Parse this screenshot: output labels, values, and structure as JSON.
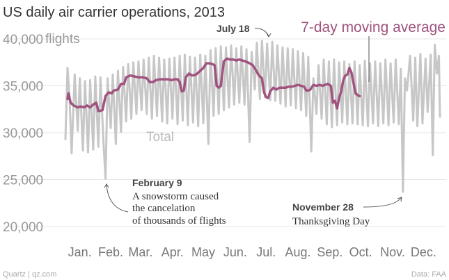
{
  "chart_data": {
    "type": "line",
    "title": "US daily air carrier operations, 2013",
    "ylabel_unit": "flights",
    "ylim": [
      18500,
      42000
    ],
    "yticks": [
      {
        "value": 40000,
        "label": "40,000"
      },
      {
        "value": 35000,
        "label": "35,000"
      },
      {
        "value": 30000,
        "label": "30,000"
      },
      {
        "value": 25000,
        "label": "25,000"
      },
      {
        "value": 20000,
        "label": "20,000"
      }
    ],
    "xticks": [
      {
        "day": 15,
        "label": "Jan."
      },
      {
        "day": 45,
        "label": "Feb."
      },
      {
        "day": 74,
        "label": "Mar."
      },
      {
        "day": 105,
        "label": "Apr."
      },
      {
        "day": 135,
        "label": "May"
      },
      {
        "day": 166,
        "label": "Jun."
      },
      {
        "day": 196,
        "label": "Jul."
      },
      {
        "day": 227,
        "label": "Aug."
      },
      {
        "day": 258,
        "label": "Sep."
      },
      {
        "day": 288,
        "label": "Oct."
      },
      {
        "day": 319,
        "label": "Nov."
      },
      {
        "day": 349,
        "label": "Dec."
      }
    ],
    "grid": true,
    "series": [
      {
        "name": "Total",
        "color": "#c7c7c7",
        "points": [
          [
            1,
            29300
          ],
          [
            3,
            36900
          ],
          [
            5,
            33800
          ],
          [
            7,
            27800
          ],
          [
            10,
            36200
          ],
          [
            13,
            30200
          ],
          [
            15,
            35800
          ],
          [
            18,
            28100
          ],
          [
            20,
            35500
          ],
          [
            23,
            27900
          ],
          [
            25,
            35600
          ],
          [
            28,
            28200
          ],
          [
            30,
            36000
          ],
          [
            33,
            28500
          ],
          [
            35,
            35900
          ],
          [
            38,
            28900
          ],
          [
            40,
            25100
          ],
          [
            42,
            35800
          ],
          [
            45,
            30500
          ],
          [
            47,
            36200
          ],
          [
            50,
            28800
          ],
          [
            52,
            36600
          ],
          [
            55,
            30100
          ],
          [
            57,
            37000
          ],
          [
            60,
            31200
          ],
          [
            62,
            37300
          ],
          [
            65,
            31500
          ],
          [
            67,
            37500
          ],
          [
            70,
            32000
          ],
          [
            72,
            37600
          ],
          [
            75,
            32400
          ],
          [
            77,
            37800
          ],
          [
            80,
            32000
          ],
          [
            82,
            38000
          ],
          [
            85,
            31500
          ],
          [
            87,
            38200
          ],
          [
            90,
            31800
          ],
          [
            92,
            38000
          ],
          [
            95,
            31200
          ],
          [
            97,
            37800
          ],
          [
            100,
            31000
          ],
          [
            102,
            37900
          ],
          [
            105,
            31500
          ],
          [
            107,
            38000
          ],
          [
            110,
            30900
          ],
          [
            112,
            38200
          ],
          [
            115,
            31300
          ],
          [
            117,
            38300
          ],
          [
            120,
            30800
          ],
          [
            122,
            38100
          ],
          [
            125,
            31100
          ],
          [
            127,
            38000
          ],
          [
            130,
            30700
          ],
          [
            132,
            38300
          ],
          [
            135,
            31000
          ],
          [
            137,
            38200
          ],
          [
            140,
            28800
          ],
          [
            142,
            38800
          ],
          [
            145,
            31800
          ],
          [
            147,
            39000
          ],
          [
            150,
            32000
          ],
          [
            152,
            39200
          ],
          [
            155,
            32400
          ],
          [
            157,
            39100
          ],
          [
            160,
            32700
          ],
          [
            162,
            39300
          ],
          [
            165,
            33000
          ],
          [
            167,
            39000
          ],
          [
            170,
            33200
          ],
          [
            172,
            39200
          ],
          [
            175,
            33000
          ],
          [
            177,
            38900
          ],
          [
            180,
            29000
          ],
          [
            182,
            38600
          ],
          [
            185,
            34600
          ],
          [
            187,
            39600
          ],
          [
            190,
            33600
          ],
          [
            192,
            39800
          ],
          [
            195,
            33800
          ],
          [
            197,
            39500
          ],
          [
            200,
            33500
          ],
          [
            202,
            39700
          ],
          [
            205,
            33400
          ],
          [
            207,
            39300
          ],
          [
            210,
            33100
          ],
          [
            212,
            39100
          ],
          [
            215,
            32800
          ],
          [
            217,
            39000
          ],
          [
            220,
            32900
          ],
          [
            222,
            38900
          ],
          [
            225,
            32600
          ],
          [
            227,
            38700
          ],
          [
            230,
            32400
          ],
          [
            232,
            38500
          ],
          [
            235,
            31800
          ],
          [
            237,
            38100
          ],
          [
            240,
            28000
          ],
          [
            242,
            35800
          ],
          [
            245,
            32000
          ],
          [
            247,
            37200
          ],
          [
            250,
            31500
          ],
          [
            252,
            37800
          ],
          [
            255,
            30900
          ],
          [
            257,
            37600
          ],
          [
            260,
            30600
          ],
          [
            262,
            37800
          ],
          [
            265,
            30800
          ],
          [
            267,
            37500
          ],
          [
            270,
            31100
          ],
          [
            272,
            37600
          ],
          [
            275,
            30900
          ],
          [
            277,
            37300
          ],
          [
            280,
            31000
          ],
          [
            282,
            37600
          ],
          [
            285,
            30900
          ],
          [
            287,
            37200
          ],
          [
            290,
            30800
          ],
          [
            292,
            37700
          ],
          [
            295,
            30700
          ],
          [
            297,
            37400
          ],
          [
            300,
            31000
          ],
          [
            302,
            37600
          ],
          [
            305,
            30700
          ],
          [
            307,
            37400
          ],
          [
            310,
            31000
          ],
          [
            312,
            37800
          ],
          [
            315,
            30800
          ],
          [
            317,
            37400
          ],
          [
            320,
            31100
          ],
          [
            322,
            37800
          ],
          [
            325,
            30900
          ],
          [
            327,
            36800
          ],
          [
            329,
            23700
          ],
          [
            331,
            35800
          ],
          [
            333,
            34500
          ],
          [
            336,
            38200
          ],
          [
            339,
            31300
          ],
          [
            341,
            38000
          ],
          [
            343,
            30700
          ],
          [
            346,
            38400
          ],
          [
            348,
            31000
          ],
          [
            351,
            37900
          ],
          [
            353,
            32200
          ],
          [
            356,
            38300
          ],
          [
            358,
            27600
          ],
          [
            360,
            39400
          ],
          [
            362,
            36300
          ],
          [
            364,
            38200
          ],
          [
            365,
            31700
          ]
        ]
      },
      {
        "name": "7-day moving average",
        "color": "#a0537f",
        "points": [
          [
            3,
            33600
          ],
          [
            4,
            34200
          ],
          [
            6,
            33200
          ],
          [
            9,
            32900
          ],
          [
            13,
            32700
          ],
          [
            16,
            32800
          ],
          [
            19,
            32700
          ],
          [
            22,
            32900
          ],
          [
            25,
            32700
          ],
          [
            28,
            33000
          ],
          [
            31,
            33200
          ],
          [
            33,
            32300
          ],
          [
            37,
            32400
          ],
          [
            40,
            33900
          ],
          [
            43,
            34300
          ],
          [
            46,
            34200
          ],
          [
            48,
            34500
          ],
          [
            52,
            34600
          ],
          [
            55,
            35200
          ],
          [
            58,
            35200
          ],
          [
            60,
            35900
          ],
          [
            64,
            36100
          ],
          [
            68,
            36000
          ],
          [
            72,
            35900
          ],
          [
            76,
            35900
          ],
          [
            80,
            35800
          ],
          [
            83,
            35400
          ],
          [
            86,
            35400
          ],
          [
            89,
            35600
          ],
          [
            93,
            35700
          ],
          [
            97,
            35700
          ],
          [
            101,
            35700
          ],
          [
            104,
            35600
          ],
          [
            107,
            35700
          ],
          [
            110,
            35700
          ],
          [
            112,
            35400
          ],
          [
            114,
            34400
          ],
          [
            116,
            34500
          ],
          [
            118,
            35900
          ],
          [
            121,
            36300
          ],
          [
            124,
            36100
          ],
          [
            128,
            36200
          ],
          [
            132,
            36600
          ],
          [
            135,
            36900
          ],
          [
            138,
            37400
          ],
          [
            141,
            37400
          ],
          [
            144,
            37300
          ],
          [
            146,
            37200
          ],
          [
            148,
            35000
          ],
          [
            150,
            34800
          ],
          [
            152,
            35000
          ],
          [
            155,
            37600
          ],
          [
            158,
            37900
          ],
          [
            161,
            37800
          ],
          [
            164,
            37800
          ],
          [
            167,
            37700
          ],
          [
            170,
            37800
          ],
          [
            173,
            37700
          ],
          [
            176,
            37600
          ],
          [
            180,
            37400
          ],
          [
            183,
            37200
          ],
          [
            186,
            36700
          ],
          [
            189,
            36100
          ],
          [
            192,
            35800
          ],
          [
            194,
            34300
          ],
          [
            196,
            33800
          ],
          [
            198,
            33700
          ],
          [
            200,
            34400
          ],
          [
            203,
            34800
          ],
          [
            206,
            34600
          ],
          [
            209,
            34800
          ],
          [
            212,
            34800
          ],
          [
            215,
            34800
          ],
          [
            218,
            34900
          ],
          [
            221,
            34900
          ],
          [
            224,
            35000
          ],
          [
            227,
            35100
          ],
          [
            230,
            35000
          ],
          [
            233,
            34900
          ],
          [
            235,
            34500
          ],
          [
            237,
            34500
          ],
          [
            239,
            34600
          ],
          [
            242,
            35100
          ],
          [
            245,
            35000
          ],
          [
            248,
            35100
          ],
          [
            251,
            35000
          ],
          [
            253,
            35100
          ],
          [
            256,
            35200
          ],
          [
            259,
            35000
          ],
          [
            261,
            33200
          ],
          [
            263,
            33400
          ],
          [
            265,
            32600
          ],
          [
            267,
            33700
          ],
          [
            269,
            34400
          ],
          [
            271,
            35600
          ],
          [
            273,
            36100
          ],
          [
            275,
            36200
          ],
          [
            277,
            36900
          ],
          [
            279,
            36400
          ],
          [
            281,
            35300
          ],
          [
            283,
            34200
          ],
          [
            285,
            34000
          ],
          [
            287,
            33900
          ]
        ]
      }
    ],
    "legend": [
      {
        "series": "7-day moving average",
        "placement": "top-right"
      },
      {
        "series": "Total",
        "placement": "inline-left"
      }
    ],
    "annotations": [
      {
        "title": "July 18",
        "lines": []
      },
      {
        "title": "February 9",
        "lines": [
          "A snowstorm caused",
          "the cancelation",
          "of thousands of flights"
        ]
      },
      {
        "title": "November 28",
        "lines": [
          "Thanksgiving Day"
        ]
      }
    ]
  },
  "footer": {
    "source_left": "Quartz | qz.com",
    "source_right": "Data: FAA"
  }
}
